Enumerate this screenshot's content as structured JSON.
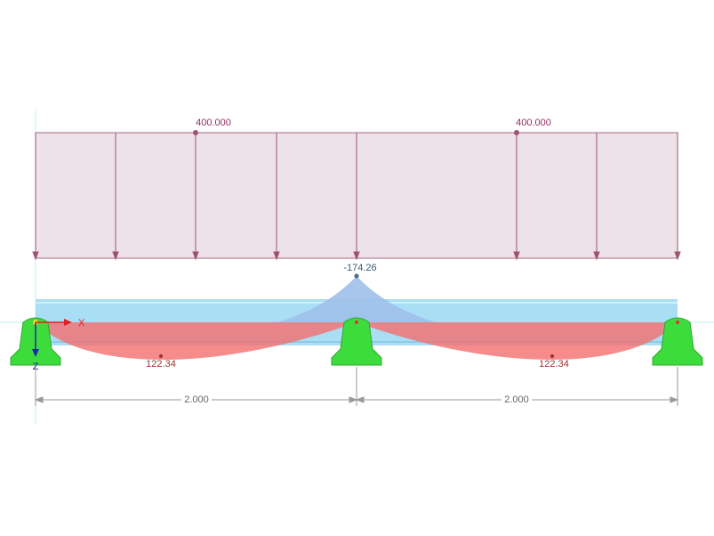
{
  "loads": [
    {
      "label": "400.000"
    },
    {
      "label": "400.000"
    }
  ],
  "moments": {
    "support": "-174.26",
    "spans": [
      "122.34",
      "122.34"
    ]
  },
  "dimensions": [
    "2.000",
    "2.000"
  ],
  "axes": {
    "x": "X",
    "z": "Z"
  }
}
